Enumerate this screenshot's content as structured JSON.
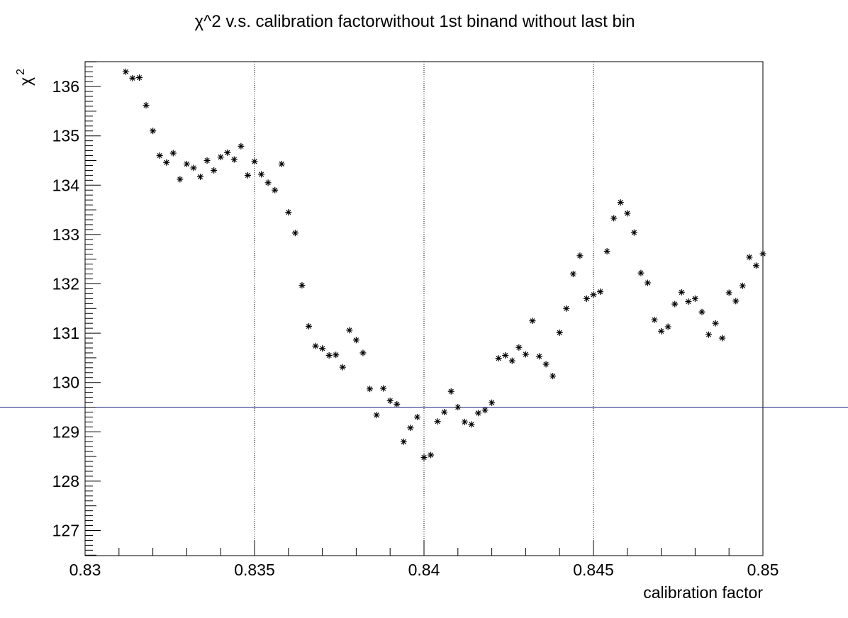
{
  "chart_data": {
    "type": "scatter",
    "title": "χ^2 v.s. calibration factorwithout 1st binand without last bin",
    "xlabel": "calibration factor",
    "ylabel_base": "χ",
    "ylabel_sup": "2",
    "xlim": [
      0.83,
      0.85
    ],
    "ylim": [
      126.5,
      136.5
    ],
    "xticks": [
      0.83,
      0.835,
      0.84,
      0.845,
      0.85
    ],
    "xtick_labels": [
      "0.83",
      "0.835",
      "0.84",
      "0.845",
      "0.85"
    ],
    "yticks": [
      127,
      128,
      129,
      130,
      131,
      132,
      133,
      134,
      135,
      136
    ],
    "ytick_labels": [
      "127",
      "128",
      "129",
      "130",
      "131",
      "132",
      "133",
      "134",
      "135",
      "136"
    ],
    "grid_x": true,
    "grid_y": false,
    "marker": "*",
    "reference_line_y": 129.5,
    "colors": {
      "marker": "#000000",
      "reference_line": "#1a237e",
      "frame": "#000000",
      "grid": "#000000"
    },
    "x": [
      0.8312,
      0.8314,
      0.8316,
      0.8318,
      0.832,
      0.8322,
      0.8324,
      0.8326,
      0.8328,
      0.833,
      0.8332,
      0.8334,
      0.8336,
      0.8338,
      0.834,
      0.8342,
      0.8344,
      0.8346,
      0.8348,
      0.835,
      0.8352,
      0.8354,
      0.8356,
      0.8358,
      0.836,
      0.8362,
      0.8364,
      0.8366,
      0.8368,
      0.837,
      0.8372,
      0.8374,
      0.8376,
      0.8378,
      0.838,
      0.8382,
      0.8384,
      0.8386,
      0.8388,
      0.839,
      0.8392,
      0.8394,
      0.8396,
      0.8398,
      0.84,
      0.8402,
      0.8404,
      0.8406,
      0.8408,
      0.841,
      0.8412,
      0.8414,
      0.8416,
      0.8418,
      0.842,
      0.8422,
      0.8424,
      0.8426,
      0.8428,
      0.843,
      0.8432,
      0.8434,
      0.8436,
      0.8438,
      0.844,
      0.8442,
      0.8444,
      0.8446,
      0.8448,
      0.845,
      0.8452,
      0.8454,
      0.8456,
      0.8458,
      0.846,
      0.8462,
      0.8464,
      0.8466,
      0.8468,
      0.847,
      0.8472,
      0.8474,
      0.8476,
      0.8478,
      0.848,
      0.8482,
      0.8484,
      0.8486,
      0.8488,
      0.849,
      0.8492,
      0.8494,
      0.8496,
      0.8498,
      0.85
    ],
    "y": [
      136.3,
      136.17,
      136.18,
      135.62,
      135.1,
      134.6,
      134.46,
      134.65,
      134.12,
      134.43,
      134.35,
      134.17,
      134.5,
      134.3,
      134.57,
      134.66,
      134.52,
      134.79,
      134.2,
      134.48,
      134.22,
      134.05,
      133.9,
      134.43,
      133.45,
      133.03,
      131.97,
      131.14,
      130.74,
      130.69,
      130.55,
      130.56,
      130.31,
      131.06,
      130.86,
      130.6,
      129.87,
      129.34,
      129.88,
      129.63,
      129.56,
      128.8,
      129.08,
      129.3,
      128.48,
      128.53,
      129.21,
      129.4,
      129.82,
      129.5,
      129.2,
      129.15,
      129.38,
      129.44,
      129.59,
      130.49,
      130.55,
      130.44,
      130.71,
      130.57,
      131.25,
      130.53,
      130.37,
      130.13,
      131.01,
      131.5,
      132.2,
      132.57,
      131.7,
      131.78,
      131.84,
      132.66,
      133.33,
      133.65,
      133.43,
      133.04,
      132.22,
      132.02,
      131.27,
      131.04,
      131.13,
      131.59,
      131.83,
      131.64,
      131.7,
      131.43,
      130.97,
      131.2,
      130.9,
      131.82,
      131.65,
      131.96,
      132.54,
      132.37,
      132.61
    ]
  }
}
